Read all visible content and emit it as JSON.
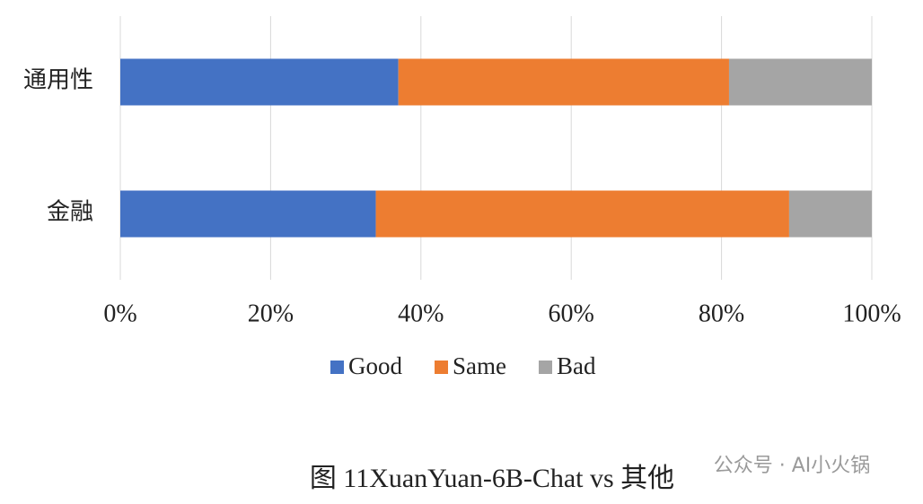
{
  "chart_data": {
    "type": "stacked-bar-horizontal",
    "categories": [
      "通用性",
      "金融"
    ],
    "series": [
      {
        "name": "Good",
        "color": "#4472c4",
        "values": [
          37,
          34
        ]
      },
      {
        "name": "Same",
        "color": "#ed7d31",
        "values": [
          44,
          55
        ]
      },
      {
        "name": "Bad",
        "color": "#a5a5a5",
        "values": [
          19,
          11
        ]
      }
    ],
    "xlim": [
      0,
      100
    ],
    "xticks": [
      {
        "value": 0,
        "label": "0%"
      },
      {
        "value": 20,
        "label": "20%"
      },
      {
        "value": 40,
        "label": "40%"
      },
      {
        "value": 60,
        "label": "60%"
      },
      {
        "value": 80,
        "label": "80%"
      },
      {
        "value": 100,
        "label": "100%"
      }
    ],
    "grid": true,
    "caption": "图  11XuanYuan-6B-Chat vs 其他",
    "watermark": "公众号 · AI小火锅"
  }
}
